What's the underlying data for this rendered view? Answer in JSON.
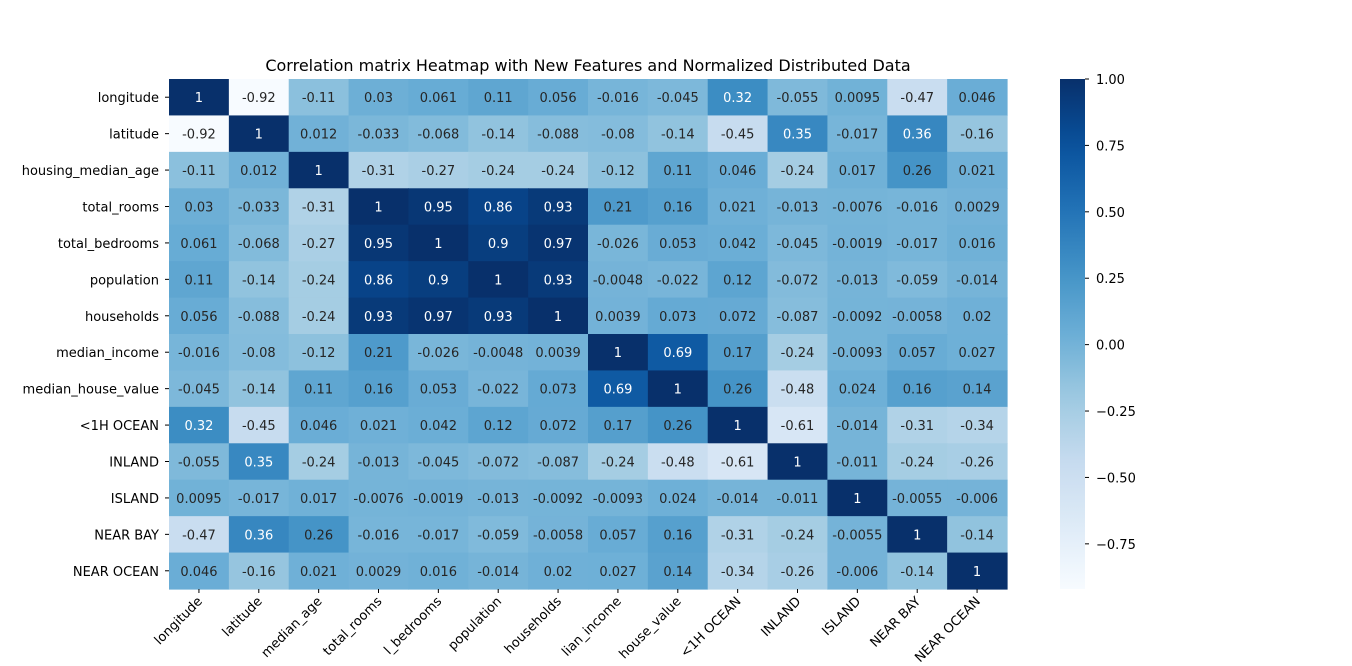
{
  "chart_data": {
    "type": "heatmap",
    "title": "Correlation matrix Heatmap with New Features and Normalized Distributed Data",
    "xlabel": "",
    "ylabel": "",
    "colormap": "Blues",
    "vmin": -0.92,
    "vmax": 1.0,
    "colorbar_ticks": [
      {
        "value": 1.0,
        "label": "1.00"
      },
      {
        "value": 0.75,
        "label": "0.75"
      },
      {
        "value": 0.5,
        "label": "0.50"
      },
      {
        "value": 0.25,
        "label": "0.25"
      },
      {
        "value": 0.0,
        "label": "0.00"
      },
      {
        "value": -0.25,
        "label": "−0.25"
      },
      {
        "value": -0.5,
        "label": "−0.50"
      },
      {
        "value": -0.75,
        "label": "−0.75"
      }
    ],
    "row_labels": [
      "longitude",
      "latitude",
      "housing_median_age",
      "total_rooms",
      "total_bedrooms",
      "population",
      "households",
      "median_income",
      "median_house_value",
      "<1H OCEAN",
      "INLAND",
      "ISLAND",
      "NEAR BAY",
      "NEAR OCEAN"
    ],
    "col_labels": [
      "longitude",
      "latitude",
      "median_age",
      "total_rooms",
      "l_bedrooms",
      "population",
      "households",
      "lian_income",
      "house_value",
      "<1H OCEAN",
      "INLAND",
      "ISLAND",
      "NEAR BAY",
      "NEAR OCEAN"
    ],
    "values": [
      [
        1,
        -0.92,
        -0.11,
        0.03,
        0.061,
        0.11,
        0.056,
        -0.016,
        -0.045,
        0.32,
        -0.055,
        0.0095,
        -0.47,
        0.046
      ],
      [
        -0.92,
        1,
        0.012,
        -0.033,
        -0.068,
        -0.14,
        -0.088,
        -0.08,
        -0.14,
        -0.45,
        0.35,
        -0.017,
        0.36,
        -0.16
      ],
      [
        -0.11,
        0.012,
        1,
        -0.31,
        -0.27,
        -0.24,
        -0.24,
        -0.12,
        0.11,
        0.046,
        -0.24,
        0.017,
        0.26,
        0.021
      ],
      [
        0.03,
        -0.033,
        -0.31,
        1,
        0.95,
        0.86,
        0.93,
        0.21,
        0.16,
        0.021,
        -0.013,
        -0.0076,
        -0.016,
        0.0029
      ],
      [
        0.061,
        -0.068,
        -0.27,
        0.95,
        1,
        0.9,
        0.97,
        -0.026,
        0.053,
        0.042,
        -0.045,
        -0.0019,
        -0.017,
        0.016
      ],
      [
        0.11,
        -0.14,
        -0.24,
        0.86,
        0.9,
        1,
        0.93,
        -0.0048,
        -0.022,
        0.12,
        -0.072,
        -0.013,
        -0.059,
        -0.014
      ],
      [
        0.056,
        -0.088,
        -0.24,
        0.93,
        0.97,
        0.93,
        1,
        0.0039,
        0.073,
        0.072,
        -0.087,
        -0.0092,
        -0.0058,
        0.02
      ],
      [
        -0.016,
        -0.08,
        -0.12,
        0.21,
        -0.026,
        -0.0048,
        0.0039,
        1,
        0.69,
        0.17,
        -0.24,
        -0.0093,
        0.057,
        0.027
      ],
      [
        -0.045,
        -0.14,
        0.11,
        0.16,
        0.053,
        -0.022,
        0.073,
        0.69,
        1,
        0.26,
        -0.48,
        0.024,
        0.16,
        0.14
      ],
      [
        0.32,
        -0.45,
        0.046,
        0.021,
        0.042,
        0.12,
        0.072,
        0.17,
        0.26,
        1,
        -0.61,
        -0.014,
        -0.31,
        -0.34
      ],
      [
        -0.055,
        0.35,
        -0.24,
        -0.013,
        -0.045,
        -0.072,
        -0.087,
        -0.24,
        -0.48,
        -0.61,
        1,
        -0.011,
        -0.24,
        -0.26
      ],
      [
        0.0095,
        -0.017,
        0.017,
        -0.0076,
        -0.0019,
        -0.013,
        -0.0092,
        -0.0093,
        0.024,
        -0.014,
        -0.011,
        1,
        -0.0055,
        -0.006
      ],
      [
        -0.47,
        0.36,
        0.26,
        -0.016,
        -0.017,
        -0.059,
        -0.0058,
        0.057,
        0.16,
        -0.31,
        -0.24,
        -0.0055,
        1,
        -0.14
      ],
      [
        0.046,
        -0.16,
        0.021,
        0.0029,
        0.016,
        -0.014,
        0.02,
        0.027,
        0.14,
        -0.34,
        -0.26,
        -0.006,
        -0.14,
        1
      ]
    ]
  }
}
